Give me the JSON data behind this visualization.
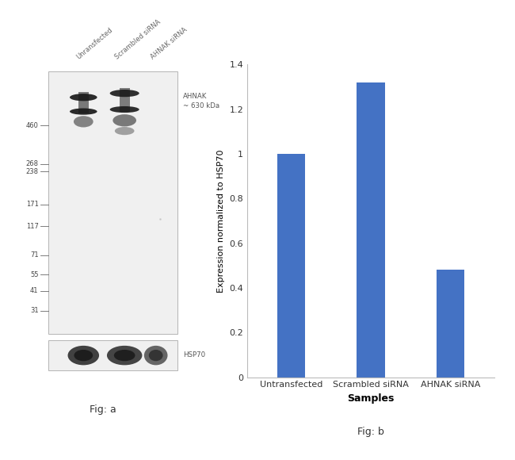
{
  "fig_a_label": "Fig: a",
  "fig_b_label": "Fig: b",
  "bar_categories": [
    "Untransfected",
    "Scrambled siRNA",
    "AHNAK siRNA"
  ],
  "bar_values": [
    1.0,
    1.32,
    0.48
  ],
  "bar_color": "#4472C4",
  "bar_xlabel": "Samples",
  "bar_ylabel": "Expression normalized to HSP70",
  "bar_ylim": [
    0,
    1.4
  ],
  "bar_yticks": [
    0,
    0.2,
    0.4,
    0.6,
    0.8,
    1.0,
    1.2,
    1.4
  ],
  "ahnak_label": "AHNAK\n~ 630 kDa",
  "hsp70_label": "HSP70",
  "lane_headers": [
    "Unransfected",
    "Scrambled siRNA",
    "AHNAK siRNA"
  ],
  "wb_marker_labels": [
    "460",
    "268",
    "238",
    "171",
    "117",
    "71",
    "55",
    "41",
    "31"
  ],
  "background_color": "#ffffff",
  "text_color": "#555555",
  "label_fontsize": 8,
  "tick_fontsize": 8,
  "bar_label_fontsize": 8
}
